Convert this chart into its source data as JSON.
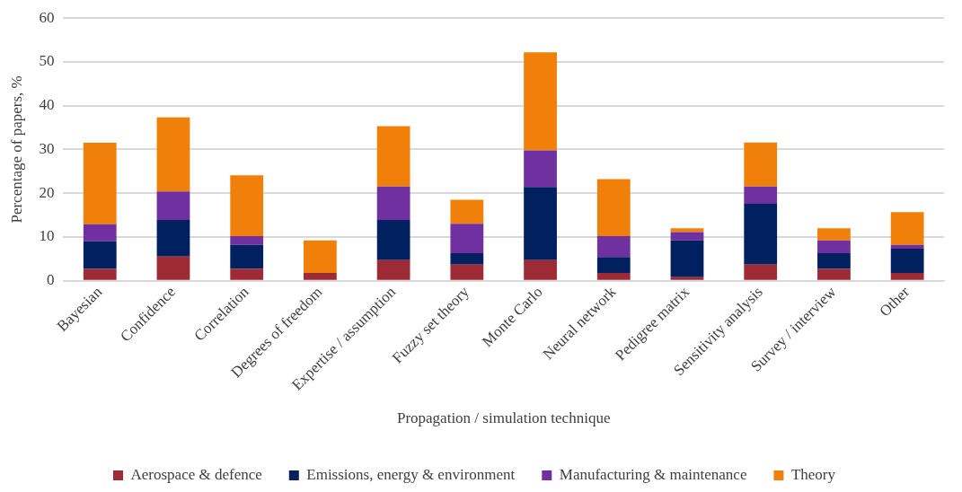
{
  "chart_data": {
    "type": "bar",
    "stacked": true,
    "xlabel": "Propagation / simulation technique",
    "ylabel": "Percentage of papers, %",
    "categories": [
      "Bayesian",
      "Confidence",
      "Correlation",
      "Degrees of freedom",
      "Expertise / assumption",
      "Fuzzy set theory",
      "Monte Carlo",
      "Neural network",
      "Pedigree matrix",
      "Sensitivity analysis",
      "Survey / interview",
      "Other"
    ],
    "series": [
      {
        "name": "Aerospace & defence",
        "color": "#9e2a36",
        "values": [
          2.7,
          5.5,
          2.7,
          1.8,
          4.7,
          3.7,
          4.7,
          1.8,
          0.8,
          3.7,
          2.7,
          1.8
        ]
      },
      {
        "name": "Emissions, energy & environment",
        "color": "#002060",
        "values": [
          6.3,
          8.4,
          5.5,
          0,
          9.2,
          2.6,
          16.7,
          3.6,
          8.4,
          13.9,
          3.6,
          5.5
        ]
      },
      {
        "name": "Manufacturing & maintenance",
        "color": "#7030a0",
        "values": [
          3.9,
          6.5,
          2.0,
          0,
          7.6,
          6.7,
          8.4,
          4.8,
          1.9,
          3.9,
          2.9,
          0.9
        ]
      },
      {
        "name": "Theory",
        "color": "#f0800a",
        "values": [
          18.6,
          16.9,
          13.9,
          7.4,
          13.8,
          5.5,
          22.4,
          13.0,
          0.9,
          10.1,
          2.8,
          7.5
        ]
      }
    ],
    "ylim": [
      0,
      60
    ],
    "yticks": [
      0,
      10,
      20,
      30,
      40,
      50,
      60
    ],
    "grid": "y",
    "legend": "bottom"
  }
}
